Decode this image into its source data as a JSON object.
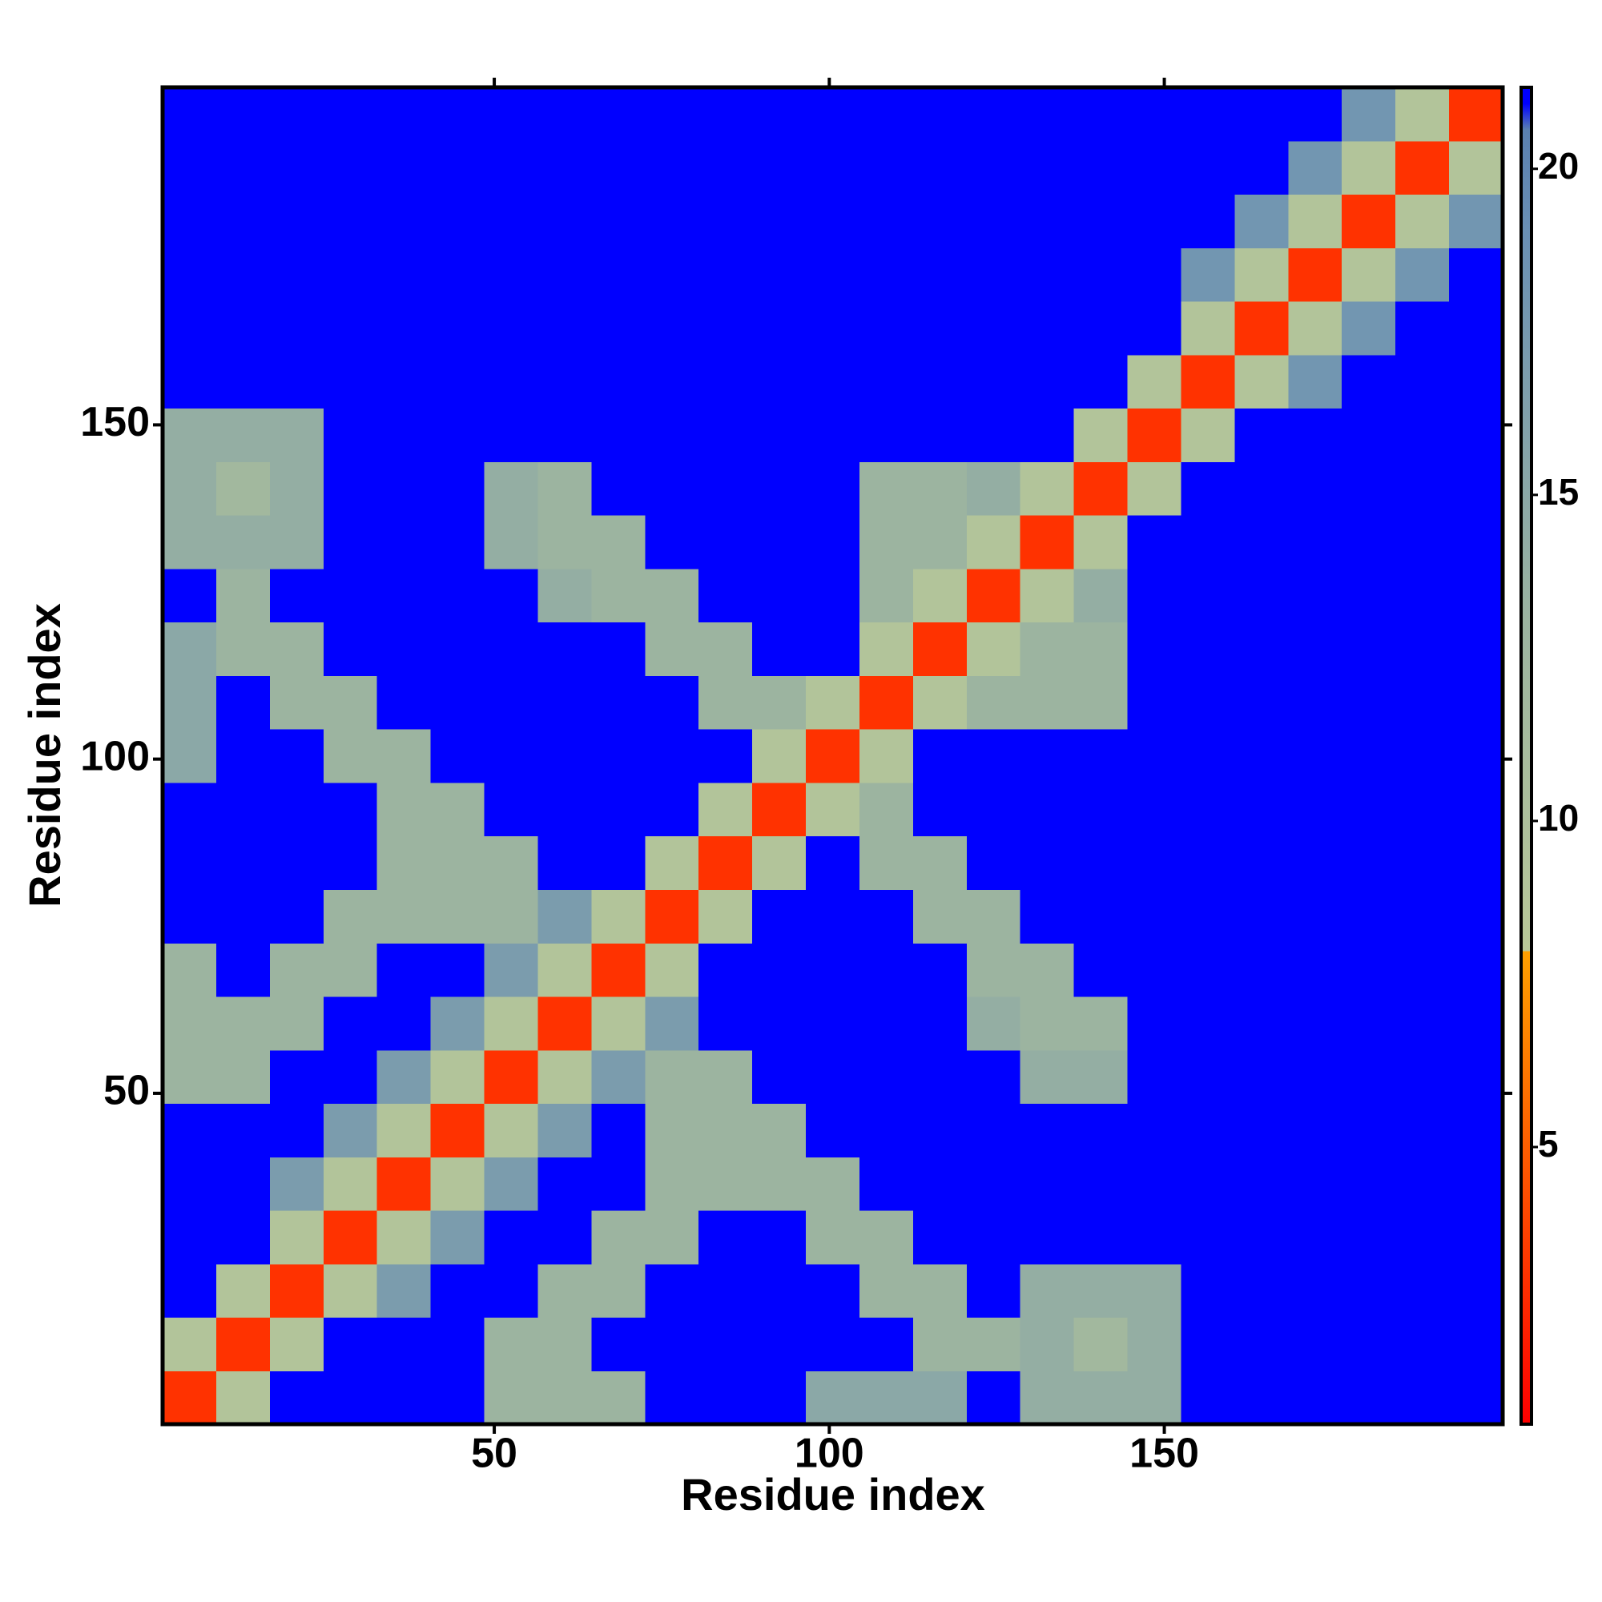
{
  "chart_data": {
    "type": "heatmap",
    "x_label": "Residue index",
    "y_label": "Residue index",
    "xlim": [
      0.5,
      200.5
    ],
    "ylim": [
      0.5,
      200.5
    ],
    "xticks": [
      50,
      100,
      150
    ],
    "yticks": [
      50,
      100,
      150
    ],
    "xbins": [
      0.5,
      8.5,
      16.5,
      24.5,
      32.5,
      40.5,
      48.5,
      56.5,
      64.5,
      72.5,
      80.5,
      88.5,
      96.5,
      104.5,
      112.5,
      120.5,
      128.5,
      136.5,
      144.5,
      152.5,
      160.5,
      168.5,
      176.5,
      184.5,
      192.5,
      200.5
    ],
    "ybins": [
      0.5,
      8.5,
      16.5,
      24.5,
      32.5,
      40.5,
      48.5,
      56.5,
      64.5,
      72.5,
      80.5,
      88.5,
      96.5,
      104.5,
      112.5,
      120.5,
      128.5,
      136.5,
      144.5,
      152.5,
      160.5,
      168.5,
      176.5,
      184.5,
      192.5,
      200.5
    ],
    "z": [
      [
        3,
        9,
        21,
        21,
        21,
        21,
        13,
        13,
        13,
        21,
        21,
        21,
        15,
        15,
        15,
        21,
        14,
        14,
        14,
        21,
        21,
        21,
        21,
        21,
        21
      ],
      [
        9,
        3,
        9,
        21,
        21,
        21,
        13,
        13,
        21,
        21,
        21,
        21,
        21,
        21,
        13,
        13,
        14,
        12,
        14,
        21,
        21,
        21,
        21,
        21,
        21
      ],
      [
        21,
        9,
        3,
        9,
        17,
        21,
        21,
        13,
        13,
        21,
        21,
        21,
        21,
        13,
        13,
        21,
        14,
        14,
        14,
        21,
        21,
        21,
        21,
        21,
        21
      ],
      [
        21,
        21,
        9,
        3,
        9,
        17,
        21,
        21,
        13,
        13,
        21,
        21,
        13,
        13,
        21,
        21,
        21,
        21,
        21,
        21,
        21,
        21,
        21,
        21,
        21
      ],
      [
        21,
        21,
        17,
        9,
        3,
        9,
        17,
        21,
        21,
        13,
        13,
        13,
        13,
        21,
        21,
        21,
        21,
        21,
        21,
        21,
        21,
        21,
        21,
        21,
        21
      ],
      [
        21,
        21,
        21,
        17,
        9,
        3,
        9,
        17,
        21,
        13,
        13,
        13,
        21,
        21,
        21,
        21,
        21,
        21,
        21,
        21,
        21,
        21,
        21,
        21,
        21
      ],
      [
        13,
        13,
        21,
        21,
        17,
        9,
        3,
        9,
        17,
        13,
        13,
        21,
        21,
        21,
        21,
        21,
        14,
        14,
        21,
        21,
        21,
        21,
        21,
        21,
        21
      ],
      [
        13,
        13,
        13,
        21,
        21,
        17,
        9,
        3,
        9,
        17,
        21,
        21,
        21,
        21,
        21,
        14,
        13,
        13,
        21,
        21,
        21,
        21,
        21,
        21,
        21
      ],
      [
        13,
        21,
        13,
        13,
        21,
        21,
        17,
        9,
        3,
        9,
        21,
        21,
        21,
        21,
        21,
        13,
        13,
        21,
        21,
        21,
        21,
        21,
        21,
        21,
        21
      ],
      [
        21,
        21,
        21,
        13,
        13,
        13,
        13,
        17,
        9,
        3,
        9,
        21,
        21,
        21,
        13,
        13,
        21,
        21,
        21,
        21,
        21,
        21,
        21,
        21,
        21
      ],
      [
        21,
        21,
        21,
        21,
        13,
        13,
        13,
        21,
        21,
        9,
        3,
        9,
        21,
        13,
        13,
        21,
        21,
        21,
        21,
        21,
        21,
        21,
        21,
        21,
        21
      ],
      [
        21,
        21,
        21,
        21,
        13,
        13,
        21,
        21,
        21,
        21,
        9,
        3,
        9,
        13,
        21,
        21,
        21,
        21,
        21,
        21,
        21,
        21,
        21,
        21,
        21
      ],
      [
        15,
        21,
        21,
        13,
        13,
        21,
        21,
        21,
        21,
        21,
        21,
        9,
        3,
        9,
        21,
        21,
        21,
        21,
        21,
        21,
        21,
        21,
        21,
        21,
        21
      ],
      [
        15,
        21,
        13,
        13,
        21,
        21,
        21,
        21,
        21,
        21,
        13,
        13,
        9,
        3,
        9,
        13,
        13,
        13,
        21,
        21,
        21,
        21,
        21,
        21,
        21
      ],
      [
        15,
        13,
        13,
        21,
        21,
        21,
        21,
        21,
        21,
        13,
        13,
        21,
        21,
        9,
        3,
        9,
        13,
        13,
        21,
        21,
        21,
        21,
        21,
        21,
        21
      ],
      [
        21,
        13,
        21,
        21,
        21,
        21,
        21,
        14,
        13,
        13,
        21,
        21,
        21,
        13,
        9,
        3,
        9,
        14,
        21,
        21,
        21,
        21,
        21,
        21,
        21
      ],
      [
        14,
        14,
        14,
        21,
        21,
        21,
        14,
        13,
        13,
        21,
        21,
        21,
        21,
        13,
        13,
        9,
        3,
        9,
        21,
        21,
        21,
        21,
        21,
        21,
        21
      ],
      [
        14,
        12,
        14,
        21,
        21,
        21,
        14,
        13,
        21,
        21,
        21,
        21,
        21,
        13,
        13,
        14,
        9,
        3,
        9,
        21,
        21,
        21,
        21,
        21,
        21
      ],
      [
        14,
        14,
        14,
        21,
        21,
        21,
        21,
        21,
        21,
        21,
        21,
        21,
        21,
        21,
        21,
        21,
        21,
        9,
        3,
        9,
        21,
        21,
        21,
        21,
        21
      ],
      [
        21,
        21,
        21,
        21,
        21,
        21,
        21,
        21,
        21,
        21,
        21,
        21,
        21,
        21,
        21,
        21,
        21,
        21,
        9,
        3,
        9,
        18,
        21,
        21,
        21
      ],
      [
        21,
        21,
        21,
        21,
        21,
        21,
        21,
        21,
        21,
        21,
        21,
        21,
        21,
        21,
        21,
        21,
        21,
        21,
        21,
        9,
        3,
        9,
        18,
        21,
        21
      ],
      [
        21,
        21,
        21,
        21,
        21,
        21,
        21,
        21,
        21,
        21,
        21,
        21,
        21,
        21,
        21,
        21,
        21,
        21,
        21,
        18,
        9,
        3,
        9,
        18,
        21
      ],
      [
        21,
        21,
        21,
        21,
        21,
        21,
        21,
        21,
        21,
        21,
        21,
        21,
        21,
        21,
        21,
        21,
        21,
        21,
        21,
        21,
        18,
        9,
        3,
        9,
        18
      ],
      [
        21,
        21,
        21,
        21,
        21,
        21,
        21,
        21,
        21,
        21,
        21,
        21,
        21,
        21,
        21,
        21,
        21,
        21,
        21,
        21,
        21,
        18,
        9,
        3,
        9
      ],
      [
        21,
        21,
        21,
        21,
        21,
        21,
        21,
        21,
        21,
        21,
        21,
        21,
        21,
        21,
        21,
        21,
        21,
        21,
        21,
        21,
        21,
        21,
        18,
        9,
        3
      ]
    ],
    "colorbar_lim": [
      0.75,
      21.25
    ],
    "colorbar_ticks": [
      5,
      10,
      15,
      20
    ],
    "colorscale": [
      [
        0.75,
        "#ff0000"
      ],
      [
        8,
        "#ffa000"
      ],
      [
        8,
        "#b8c898"
      ],
      [
        13,
        "#9cb4a0"
      ],
      [
        19,
        "#6a90b4"
      ],
      [
        20.6,
        "#5a80b0"
      ],
      [
        21,
        "#0000ff"
      ],
      [
        21.25,
        "#0000ff"
      ]
    ]
  }
}
